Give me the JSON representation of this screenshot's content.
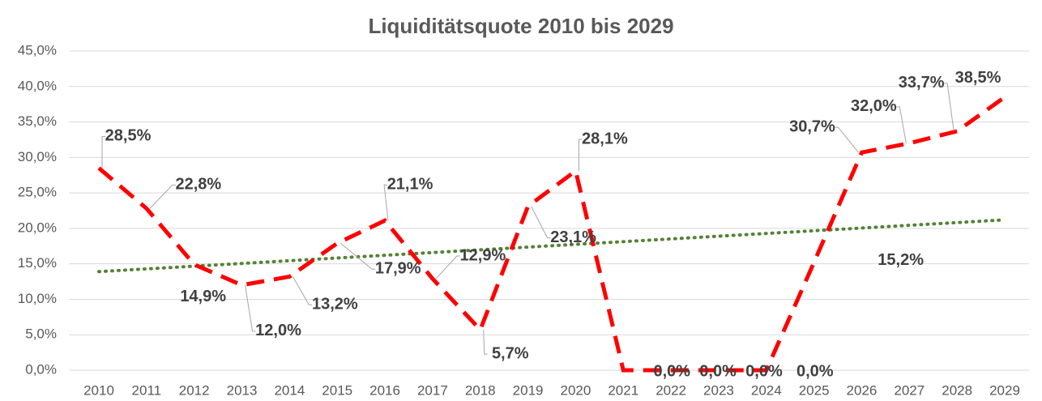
{
  "chart_data": {
    "type": "line",
    "title": "Liquiditätsquote 2010 bis 2029",
    "categories": [
      "2010",
      "2011",
      "2012",
      "2013",
      "2014",
      "2015",
      "2016",
      "2017",
      "2018",
      "2019",
      "2020",
      "2021",
      "2022",
      "2023",
      "2024",
      "2025",
      "2026",
      "2027",
      "2028",
      "2029"
    ],
    "series": [
      {
        "color": "#ff0000",
        "values": [
          28.5,
          22.8,
          14.9,
          12.0,
          13.2,
          17.9,
          21.1,
          12.9,
          5.7,
          23.1,
          28.1,
          0,
          0,
          0,
          0,
          15.2,
          30.7,
          32.0,
          33.7,
          38.5
        ],
        "value_labels": [
          "28,5%",
          "22,8%",
          "14,9%",
          "12,0%",
          "13,2%",
          "17,9%",
          "21,1%",
          "12,9%",
          "5,7%",
          "23,1%",
          "28,1%",
          "0,0%",
          "0,0%",
          "0,0%",
          "0,0%",
          "15,2%",
          "30,7%",
          "32,0%",
          "33,7%",
          "38,5%"
        ]
      }
    ],
    "trendline": {
      "color": "#548235",
      "values": [
        13.9,
        21.2
      ]
    },
    "ylim": [
      0,
      45
    ],
    "yticks": [
      {
        "value": 0,
        "label": "0,0%"
      },
      {
        "value": 5,
        "label": "5,0%"
      },
      {
        "value": 10,
        "label": "10,0%"
      },
      {
        "value": 15,
        "label": "15,0%"
      },
      {
        "value": 20,
        "label": "20,0%"
      },
      {
        "value": 25,
        "label": "25,0%"
      },
      {
        "value": 30,
        "label": "30,0%"
      },
      {
        "value": 35,
        "label": "35,0%"
      },
      {
        "value": 40,
        "label": "40,0%"
      },
      {
        "value": 45,
        "label": "45,0%"
      }
    ],
    "grid": true
  }
}
